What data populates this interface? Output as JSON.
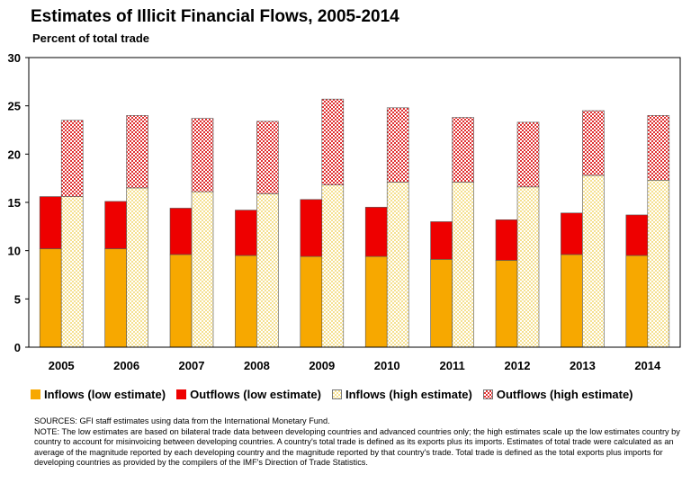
{
  "header": {
    "title": "Estimates of Illicit Financial Flows, 2005-2014",
    "subtitle": "Percent of total trade"
  },
  "colors": {
    "inflows_low": "#F7A800",
    "outflows_low": "#EE0000",
    "inflows_high": "#F5E090",
    "outflows_high": "#E03030"
  },
  "legend": [
    {
      "label": "Inflows (low estimate)",
      "key": "inflows_low",
      "pattern": "solid"
    },
    {
      "label": "Outflows (low estimate)",
      "key": "outflows_low",
      "pattern": "solid"
    },
    {
      "label": "Inflows (high estimate)",
      "key": "inflows_high",
      "pattern": "checker"
    },
    {
      "label": "Outflows (high estimate)",
      "key": "outflows_high",
      "pattern": "checker"
    }
  ],
  "chart_data": {
    "type": "bar",
    "stacked": true,
    "title": "Estimates of Illicit Financial Flows, 2005-2014",
    "subtitle": "Percent of total trade",
    "categories": [
      "2005",
      "2006",
      "2007",
      "2008",
      "2009",
      "2010",
      "2011",
      "2012",
      "2013",
      "2014"
    ],
    "ylim": [
      0,
      30
    ],
    "yticks": [
      0,
      5,
      10,
      15,
      20,
      25,
      30
    ],
    "grid": false,
    "legend_position": "bottom",
    "stacks": [
      {
        "stack": "low estimate",
        "series": [
          {
            "name": "Inflows (low estimate)",
            "values": [
              10.2,
              10.2,
              9.6,
              9.5,
              9.4,
              9.4,
              9.1,
              9.0,
              9.6,
              9.5
            ]
          },
          {
            "name": "Outflows (low estimate)",
            "values": [
              5.4,
              4.9,
              4.8,
              4.7,
              5.9,
              5.1,
              3.9,
              4.2,
              4.3,
              4.2
            ]
          }
        ]
      },
      {
        "stack": "high estimate",
        "series": [
          {
            "name": "Inflows (high estimate)",
            "values": [
              15.6,
              16.5,
              16.1,
              15.9,
              16.8,
              17.1,
              17.1,
              16.6,
              17.8,
              17.3
            ]
          },
          {
            "name": "Outflows (high estimate)",
            "values": [
              7.9,
              7.5,
              7.6,
              7.5,
              8.9,
              7.7,
              6.7,
              6.7,
              6.7,
              6.7
            ]
          }
        ]
      }
    ]
  },
  "notes": {
    "sources": "SOURCES: GFI staff estimates using data from the International Monetary Fund.",
    "note": "NOTE: The low estimates are based on bilateral trade data between developing countries and advanced countries only; the high estimates scale up the low estimates country by country to account for misinvoicing between developing countries.  A country's total trade is defined as its exports plus its imports.  Estimates of total trade were calculated as an average of the magnitude reported by each developing country and the magnitude reported by that country's trade. Total trade is defined as the total exports plus imports for developing countries as provided by the compilers of the IMF's Direction of Trade Statistics."
  }
}
